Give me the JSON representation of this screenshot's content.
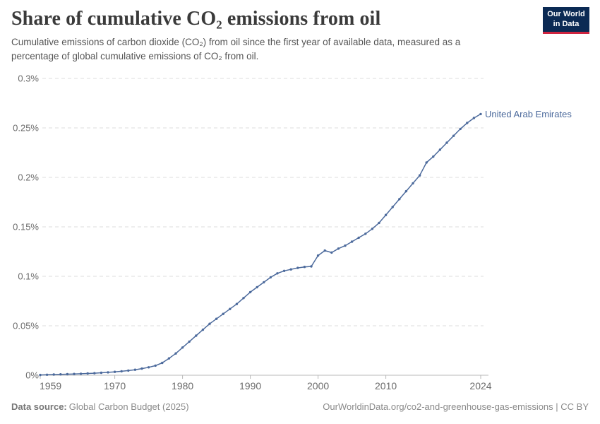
{
  "header": {
    "title": "Share of cumulative CO₂ emissions from oil",
    "subtitle": "Cumulative emissions of carbon dioxide (CO₂) from oil since the first year of available data, measured as a percentage of global cumulative emissions of CO₂ from oil.",
    "logo_line1": "Our World",
    "logo_line2": "in Data"
  },
  "footer": {
    "datasource_label": "Data source:",
    "datasource_value": "Global Carbon Budget (2025)",
    "link": "OurWorldinData.org/co2-and-greenhouse-gas-emissions | CC BY"
  },
  "colors": {
    "line": "#4C6A9C",
    "logo_bg": "#0b2a54",
    "logo_accent": "#cf2440",
    "grid": "#dcdcdc",
    "axis": "#b8b8b8",
    "tick_text": "#6b6b6b"
  },
  "chart_data": {
    "type": "line",
    "title": "Share of cumulative CO₂ emissions from oil",
    "xlabel": "",
    "ylabel": "",
    "ylim": [
      0,
      0.3
    ],
    "xlim": [
      1959,
      2024
    ],
    "grid": "dashed-horizontal",
    "legend_position": "end-of-line-label",
    "y_ticks": [
      {
        "v": 0,
        "label": "0%"
      },
      {
        "v": 0.05,
        "label": "0.05%"
      },
      {
        "v": 0.1,
        "label": "0.1%"
      },
      {
        "v": 0.15,
        "label": "0.15%"
      },
      {
        "v": 0.2,
        "label": "0.2%"
      },
      {
        "v": 0.25,
        "label": "0.25%"
      },
      {
        "v": 0.3,
        "label": "0.3%"
      }
    ],
    "x_ticks": [
      {
        "v": 1959,
        "label": "1959"
      },
      {
        "v": 1970,
        "label": "1970"
      },
      {
        "v": 1980,
        "label": "1980"
      },
      {
        "v": 1990,
        "label": "1990"
      },
      {
        "v": 2000,
        "label": "2000"
      },
      {
        "v": 2010,
        "label": "2010"
      },
      {
        "v": 2024,
        "label": "2024"
      }
    ],
    "series": [
      {
        "name": "United Arab Emirates",
        "color": "#4C6A9C",
        "start_year": 1959,
        "unit": "%",
        "values": [
          0.0003,
          0.0005,
          0.0007,
          0.0009,
          0.0011,
          0.0013,
          0.0015,
          0.0018,
          0.0021,
          0.0025,
          0.0029,
          0.0034,
          0.004,
          0.0047,
          0.0056,
          0.0067,
          0.008,
          0.0097,
          0.0125,
          0.017,
          0.022,
          0.028,
          0.034,
          0.04,
          0.046,
          0.052,
          0.057,
          0.062,
          0.067,
          0.072,
          0.078,
          0.084,
          0.089,
          0.094,
          0.099,
          0.103,
          0.1055,
          0.107,
          0.1085,
          0.1095,
          0.11,
          0.121,
          0.126,
          0.124,
          0.128,
          0.131,
          0.135,
          0.139,
          0.143,
          0.148,
          0.154,
          0.162,
          0.17,
          0.178,
          0.186,
          0.194,
          0.202,
          0.215,
          0.221,
          0.228,
          0.235,
          0.242,
          0.249,
          0.255,
          0.26,
          0.264
        ]
      }
    ]
  }
}
